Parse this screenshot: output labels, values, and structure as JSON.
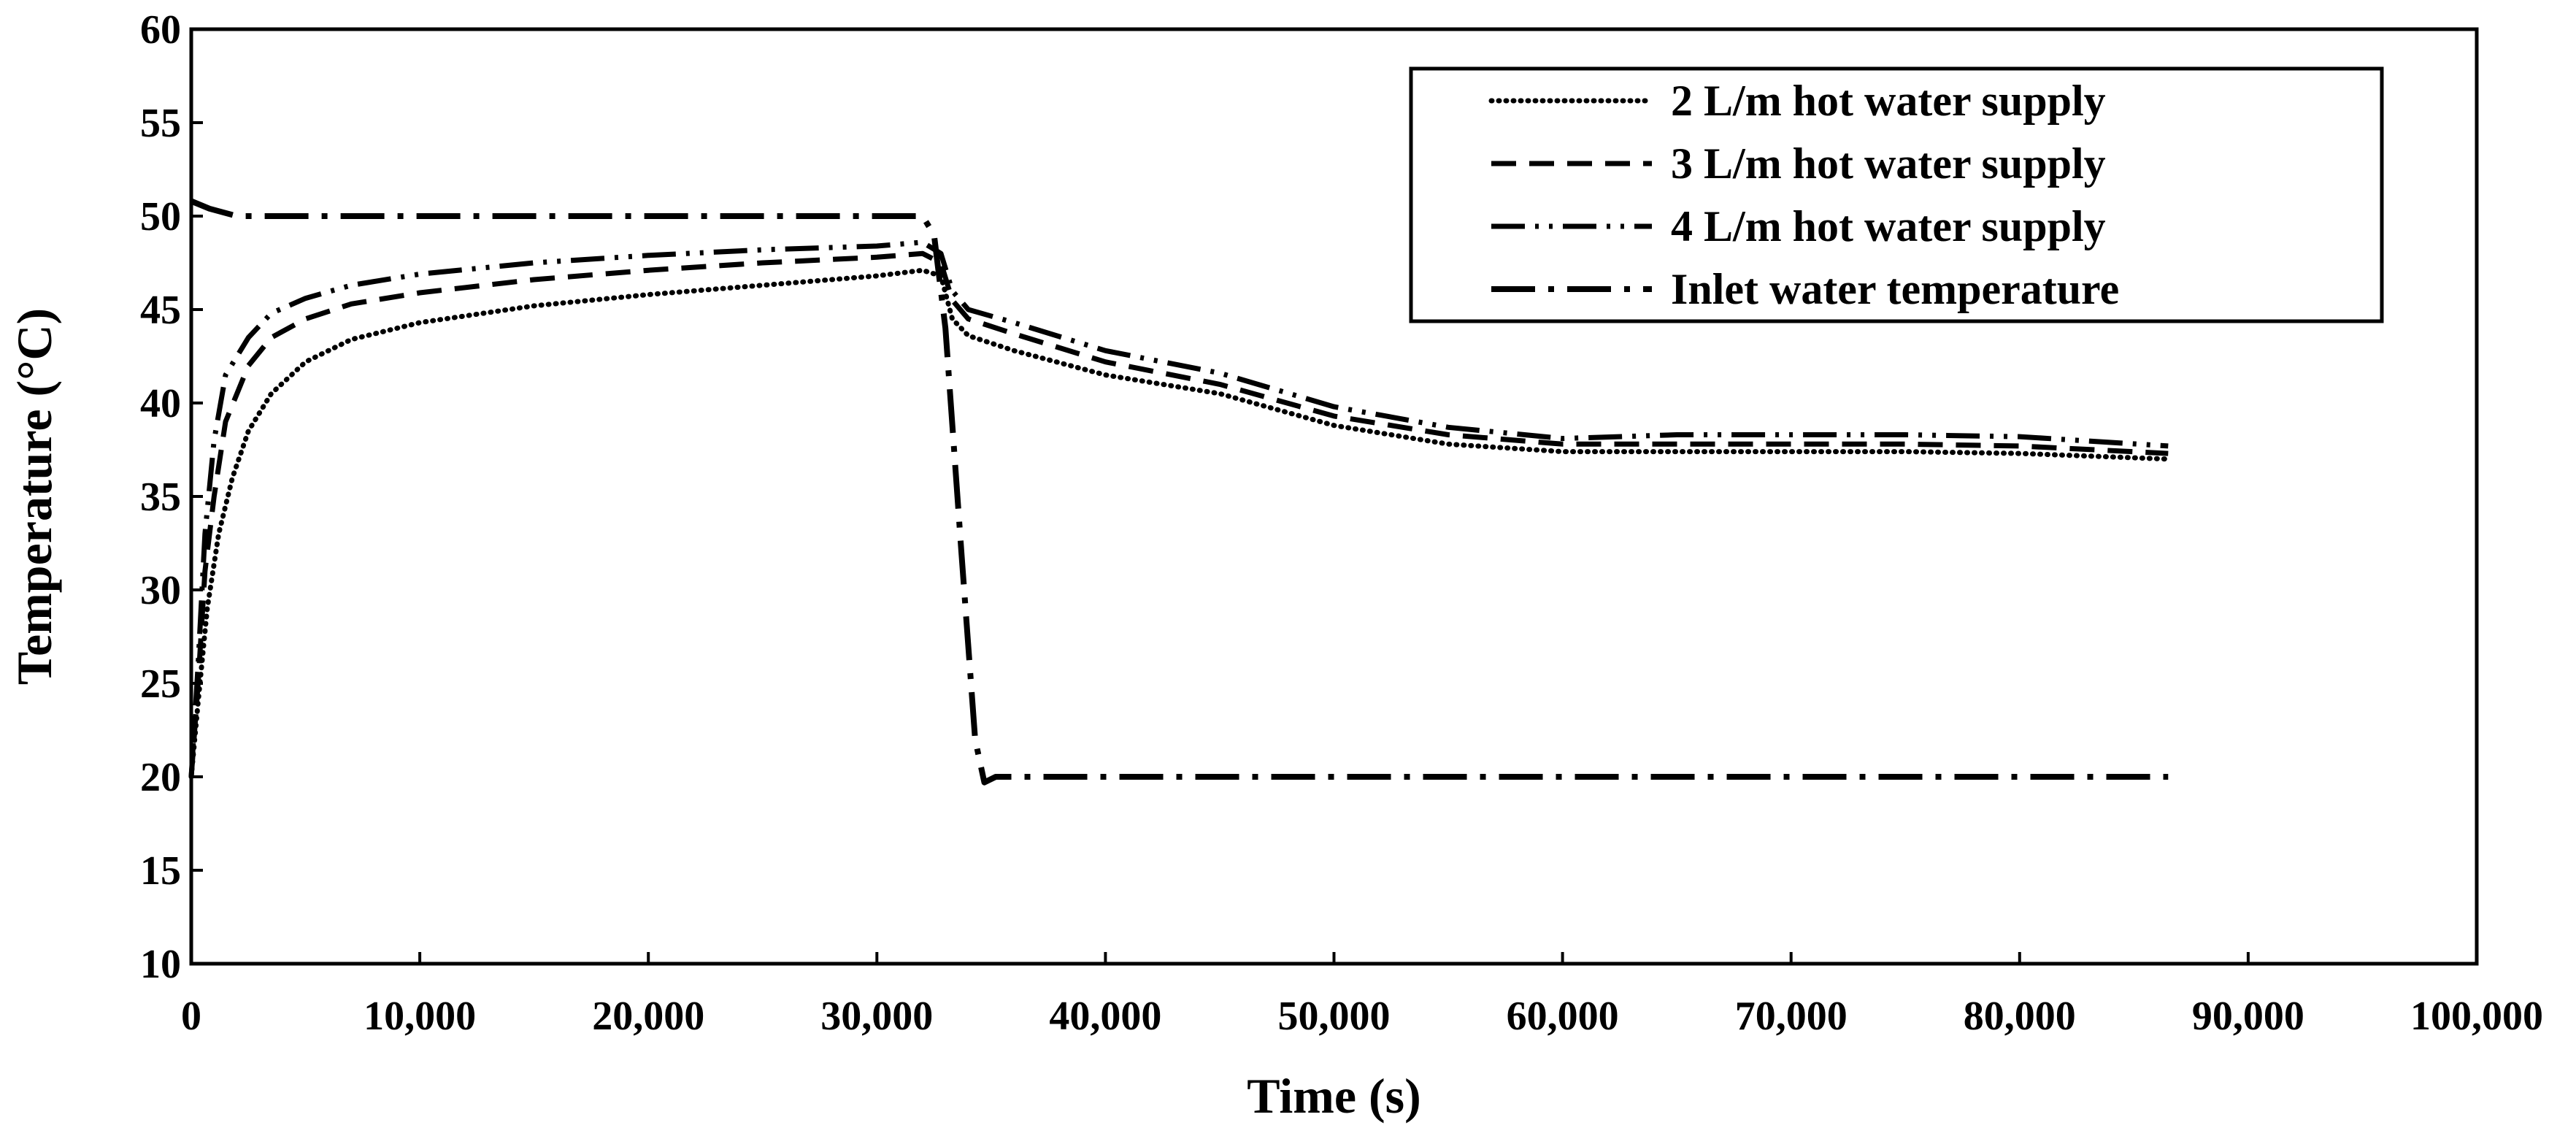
{
  "chart_data": {
    "type": "line",
    "title": "",
    "xlabel": "Time (s)",
    "ylabel": "Temperature (°C)",
    "xlim": [
      0,
      100000
    ],
    "ylim": [
      10,
      60
    ],
    "x_ticks": [
      0,
      10000,
      20000,
      30000,
      40000,
      50000,
      60000,
      70000,
      80000,
      90000,
      100000
    ],
    "x_tick_labels": [
      "0",
      "10,000",
      "20,000",
      "30,000",
      "40,000",
      "50,000",
      "60,000",
      "70,000",
      "80,000",
      "90,000",
      "100,000"
    ],
    "y_ticks": [
      10,
      15,
      20,
      25,
      30,
      35,
      40,
      45,
      50,
      55,
      60
    ],
    "y_tick_labels": [
      "10",
      "15",
      "20",
      "25",
      "30",
      "35",
      "40",
      "45",
      "50",
      "55",
      "60"
    ],
    "grid": false,
    "legend_position": "top-right",
    "series": [
      {
        "name": "2 L/m hot water supply",
        "dash": "dotted",
        "color": "#000000",
        "points": [
          [
            0,
            20
          ],
          [
            300,
            24
          ],
          [
            700,
            29
          ],
          [
            1200,
            33
          ],
          [
            1800,
            36
          ],
          [
            2500,
            38.5
          ],
          [
            3500,
            40.5
          ],
          [
            5000,
            42.2
          ],
          [
            7000,
            43.4
          ],
          [
            10000,
            44.3
          ],
          [
            15000,
            45.2
          ],
          [
            20000,
            45.8
          ],
          [
            25000,
            46.3
          ],
          [
            30000,
            46.8
          ],
          [
            32000,
            47.1
          ],
          [
            32800,
            46.8
          ],
          [
            33300,
            44.5
          ],
          [
            34000,
            43.6
          ],
          [
            36000,
            42.8
          ],
          [
            40000,
            41.5
          ],
          [
            45000,
            40.5
          ],
          [
            50000,
            38.8
          ],
          [
            55000,
            37.8
          ],
          [
            60000,
            37.4
          ],
          [
            65000,
            37.4
          ],
          [
            70000,
            37.4
          ],
          [
            75000,
            37.4
          ],
          [
            80000,
            37.3
          ],
          [
            86500,
            37
          ]
        ]
      },
      {
        "name": "3 L/m hot water supply",
        "dash": "dashed",
        "color": "#000000",
        "points": [
          [
            0,
            20
          ],
          [
            300,
            25
          ],
          [
            600,
            31
          ],
          [
            1000,
            35
          ],
          [
            1500,
            39
          ],
          [
            2500,
            42
          ],
          [
            3500,
            43.5
          ],
          [
            5000,
            44.5
          ],
          [
            7000,
            45.3
          ],
          [
            10000,
            45.9
          ],
          [
            15000,
            46.6
          ],
          [
            20000,
            47.1
          ],
          [
            25000,
            47.5
          ],
          [
            30000,
            47.8
          ],
          [
            32000,
            48
          ],
          [
            32800,
            47.5
          ],
          [
            33300,
            45.5
          ],
          [
            34000,
            44.5
          ],
          [
            36000,
            43.7
          ],
          [
            40000,
            42.2
          ],
          [
            45000,
            41
          ],
          [
            50000,
            39.3
          ],
          [
            55000,
            38.3
          ],
          [
            60000,
            37.8
          ],
          [
            65000,
            37.8
          ],
          [
            70000,
            37.8
          ],
          [
            75000,
            37.8
          ],
          [
            80000,
            37.7
          ],
          [
            86500,
            37.3
          ]
        ]
      },
      {
        "name": "4 L/m hot water supply",
        "dash": "dash-dot-dot",
        "color": "#000000",
        "points": [
          [
            0,
            20
          ],
          [
            300,
            26
          ],
          [
            600,
            33
          ],
          [
            1000,
            38
          ],
          [
            1500,
            41.5
          ],
          [
            2500,
            43.5
          ],
          [
            3500,
            44.8
          ],
          [
            5000,
            45.6
          ],
          [
            7000,
            46.3
          ],
          [
            10000,
            46.9
          ],
          [
            15000,
            47.5
          ],
          [
            20000,
            47.9
          ],
          [
            25000,
            48.2
          ],
          [
            30000,
            48.4
          ],
          [
            32000,
            48.6
          ],
          [
            32800,
            48
          ],
          [
            33300,
            46
          ],
          [
            34000,
            45
          ],
          [
            36000,
            44.3
          ],
          [
            40000,
            42.8
          ],
          [
            45000,
            41.6
          ],
          [
            50000,
            39.8
          ],
          [
            55000,
            38.7
          ],
          [
            60000,
            38.1
          ],
          [
            65000,
            38.3
          ],
          [
            70000,
            38.3
          ],
          [
            75000,
            38.3
          ],
          [
            80000,
            38.2
          ],
          [
            86500,
            37.7
          ]
        ]
      },
      {
        "name": "Inlet water temperature",
        "dash": "dash-dot",
        "color": "#000000",
        "points": [
          [
            0,
            50.8
          ],
          [
            800,
            50.4
          ],
          [
            2000,
            50
          ],
          [
            10000,
            50
          ],
          [
            20000,
            50
          ],
          [
            30000,
            50
          ],
          [
            32000,
            50
          ],
          [
            32500,
            49
          ],
          [
            33000,
            44
          ],
          [
            33700,
            32
          ],
          [
            34300,
            22
          ],
          [
            34700,
            19.7
          ],
          [
            35200,
            20
          ],
          [
            40000,
            20
          ],
          [
            50000,
            20
          ],
          [
            60000,
            20
          ],
          [
            70000,
            20
          ],
          [
            80000,
            20
          ],
          [
            86500,
            20
          ]
        ]
      }
    ]
  }
}
